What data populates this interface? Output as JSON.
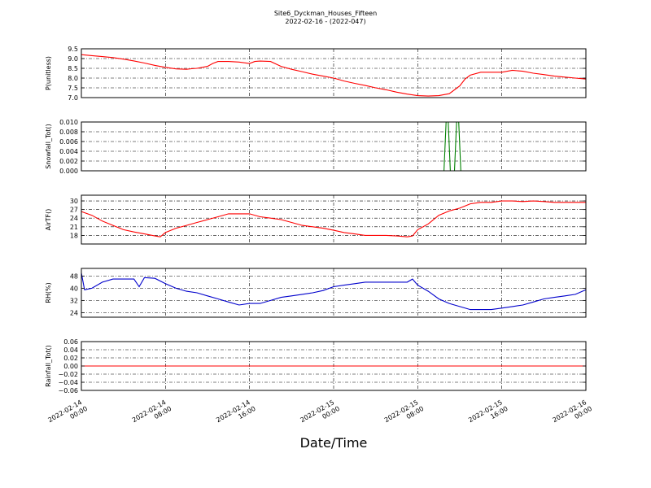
{
  "title_line1": "Site6_Dyckman_Houses_Fifteen",
  "title_line2": "2022-02-16 - (2022-047)",
  "x_label": "Date/Time",
  "x_ticks": [
    {
      "line1": "2022-02-14",
      "line2": "00:00",
      "t": 0
    },
    {
      "line1": "2022-02-14",
      "line2": "08:00",
      "t": 8
    },
    {
      "line1": "2022-02-14",
      "line2": "16:00",
      "t": 16
    },
    {
      "line1": "2022-02-15",
      "line2": "00:00",
      "t": 24
    },
    {
      "line1": "2022-02-15",
      "line2": "08:00",
      "t": 32
    },
    {
      "line1": "2022-02-15",
      "line2": "16:00",
      "t": 40
    },
    {
      "line1": "2022-02-16",
      "line2": "00:00",
      "t": 48
    }
  ],
  "chart_data": [
    {
      "type": "line",
      "ylabel": "P(unitless)",
      "ylim": [
        7.0,
        9.5
      ],
      "yticks": [
        "7.0",
        "7.5",
        "8.0",
        "8.5",
        "9.0",
        "9.5"
      ],
      "grid": true,
      "series": [
        {
          "color": "#ff0000",
          "x": [
            0,
            1,
            2,
            3,
            4,
            5,
            6,
            7,
            8,
            9,
            10,
            10.5,
            11,
            11.5,
            12,
            12.5,
            13,
            14,
            15,
            16,
            16.5,
            17,
            18,
            19,
            20,
            21,
            22,
            23,
            24,
            25,
            26,
            27,
            28,
            29,
            30,
            31,
            32,
            33,
            34,
            35,
            36,
            36.5,
            37,
            38,
            39,
            40,
            41,
            42,
            43,
            44,
            45,
            46,
            47,
            48
          ],
          "y": [
            9.2,
            9.15,
            9.1,
            9.05,
            8.97,
            8.88,
            8.77,
            8.65,
            8.55,
            8.47,
            8.45,
            8.48,
            8.5,
            8.55,
            8.6,
            8.75,
            8.85,
            8.85,
            8.82,
            8.75,
            8.85,
            8.87,
            8.85,
            8.6,
            8.45,
            8.33,
            8.2,
            8.1,
            8.0,
            7.85,
            7.73,
            7.62,
            7.5,
            7.4,
            7.28,
            7.18,
            7.1,
            7.08,
            7.1,
            7.2,
            7.6,
            7.95,
            8.15,
            8.3,
            8.3,
            8.3,
            8.4,
            8.35,
            8.25,
            8.18,
            8.1,
            8.05,
            8.0,
            7.95
          ]
        }
      ]
    },
    {
      "type": "line",
      "ylabel": "Snowfall_Tot()",
      "ylim": [
        0.0,
        0.01
      ],
      "yticks": [
        "0.000",
        "0.002",
        "0.004",
        "0.006",
        "0.008",
        "0.010"
      ],
      "grid": true,
      "series": [
        {
          "color": "#008000",
          "x": [
            0,
            34.5,
            34.7,
            34.9,
            35.1,
            35.3,
            35.5,
            35.7,
            35.9,
            36.1,
            48
          ],
          "y": [
            0,
            0,
            0.01,
            0.01,
            0,
            0,
            0,
            0.01,
            0.01,
            0,
            0
          ]
        }
      ]
    },
    {
      "type": "line",
      "ylabel": "AirTF()",
      "ylim": [
        15,
        32
      ],
      "yticks": [
        "18",
        "21",
        "24",
        "27",
        "30"
      ],
      "ytickvals": [
        18,
        21,
        24,
        27,
        30
      ],
      "grid": true,
      "series": [
        {
          "color": "#ff0000",
          "x": [
            0,
            1,
            2,
            3,
            4,
            5,
            6,
            7,
            7.5,
            8,
            9,
            10,
            11,
            12,
            13,
            14,
            15,
            16,
            17,
            18,
            19,
            20,
            21,
            22,
            23,
            24,
            25,
            26,
            27,
            28,
            29,
            30,
            31,
            31.5,
            32,
            33,
            34,
            35,
            36,
            37,
            38,
            39,
            40,
            41,
            42,
            43,
            44,
            45,
            46,
            47,
            48
          ],
          "y": [
            26.3,
            25,
            23,
            21.5,
            20,
            19.2,
            18.5,
            17.8,
            17.5,
            19,
            20.5,
            21.5,
            22.5,
            23.5,
            24.5,
            25.5,
            25.5,
            25.5,
            24.5,
            24,
            23.5,
            22.5,
            21.5,
            21,
            20.5,
            19.8,
            19,
            18.5,
            18,
            18,
            18,
            17.8,
            17.5,
            17.8,
            20,
            22,
            25,
            26.5,
            27.5,
            29,
            29.5,
            29.5,
            30,
            30,
            29.8,
            30,
            29.8,
            29.5,
            29.5,
            29.5,
            29.5
          ]
        }
      ]
    },
    {
      "type": "line",
      "ylabel": "RH(%)",
      "ylim": [
        21,
        53
      ],
      "yticks": [
        "24",
        "32",
        "40",
        "48"
      ],
      "ytickvals": [
        24,
        32,
        40,
        48
      ],
      "grid": true,
      "series": [
        {
          "color": "#0000cc",
          "x": [
            0,
            0.3,
            1,
            2,
            3,
            4,
            5,
            5.5,
            6,
            7,
            8,
            9,
            10,
            11,
            12,
            13,
            14,
            15,
            16,
            17,
            18,
            19,
            20,
            21,
            22,
            23,
            24,
            25,
            26,
            27,
            28,
            29,
            30,
            31,
            31.5,
            32,
            33,
            34,
            35,
            36,
            37,
            38,
            39,
            40,
            41,
            42,
            43,
            44,
            45,
            46,
            47,
            48
          ],
          "y": [
            50,
            39,
            40,
            44,
            46,
            46,
            46,
            41,
            47,
            46.5,
            43,
            40,
            38,
            37,
            35,
            33,
            31,
            29,
            30,
            30,
            32,
            34,
            35,
            36,
            37,
            38.5,
            41,
            42,
            43,
            44,
            44,
            44,
            44,
            44,
            46,
            42,
            38,
            33,
            30,
            28,
            26,
            26,
            26,
            27,
            28,
            29,
            31,
            33,
            34,
            35,
            36,
            39
          ]
        }
      ]
    },
    {
      "type": "line",
      "ylabel": "Rainfall_Tot()",
      "ylim": [
        -0.06,
        0.06
      ],
      "yticks": [
        "−0.06",
        "−0.04",
        "−0.02",
        "0.00",
        "0.02",
        "0.04",
        "0.06"
      ],
      "ytickvals": [
        -0.06,
        -0.04,
        -0.02,
        0,
        0.02,
        0.04,
        0.06
      ],
      "grid": true,
      "series": [
        {
          "color": "#ff0000",
          "x": [
            0,
            48
          ],
          "y": [
            0,
            0
          ]
        }
      ]
    }
  ]
}
